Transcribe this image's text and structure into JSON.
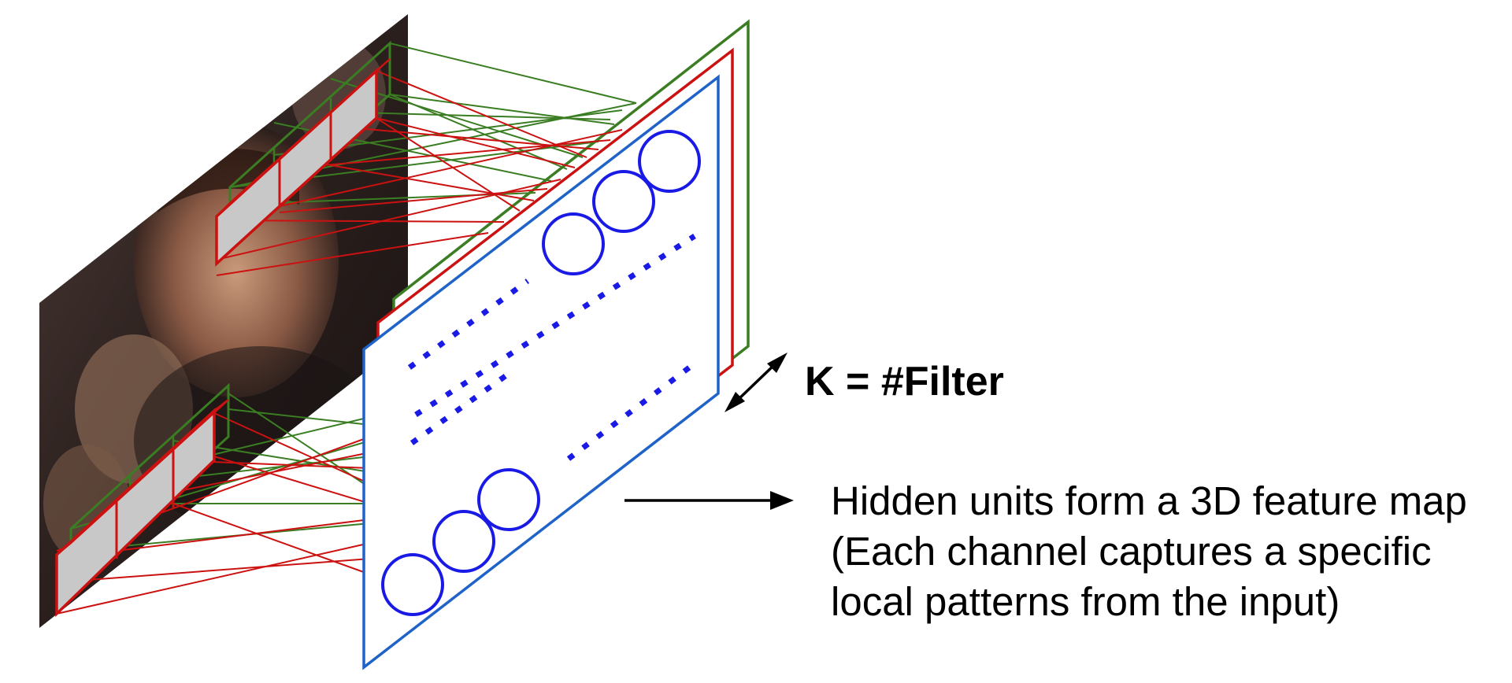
{
  "filter_label": "K = #Filter",
  "description": {
    "line1": "Hidden units form a 3D feature map",
    "line2": "(Each channel captures a specific",
    "line3": "local patterns from the input)"
  },
  "colors": {
    "green_filter": "#3a7d22",
    "red_filter": "#cc1111",
    "blue_map": "#1f63c8",
    "hidden_unit": "#1a1ae6",
    "receptive_field_fill": "#c8c8c8"
  },
  "icons": [
    "double-arrow-icon",
    "right-arrow-icon"
  ]
}
